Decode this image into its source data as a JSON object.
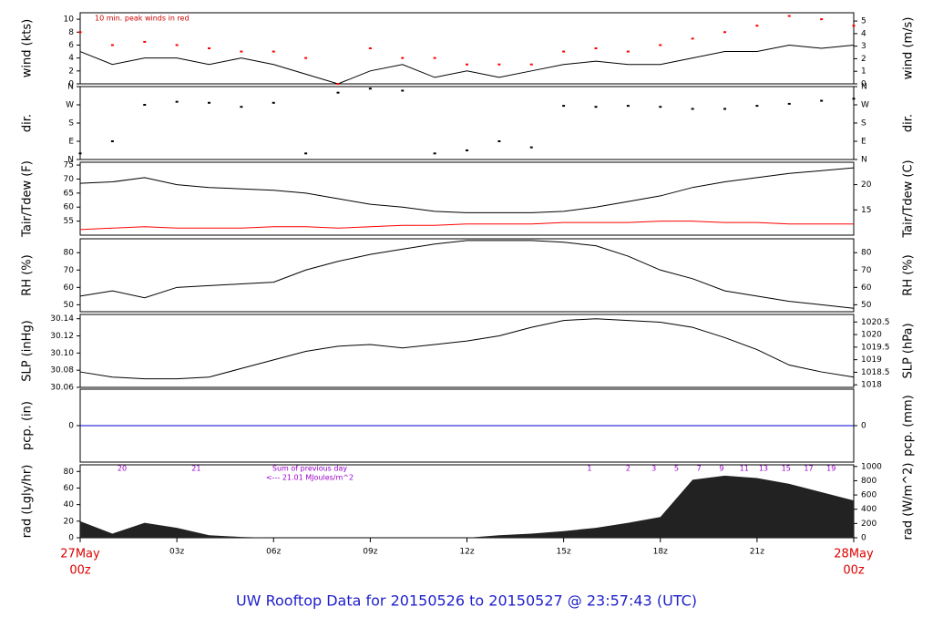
{
  "chart_data": {
    "type": "multi-panel",
    "title": "UW Rooftop Data for 20150526  to  20150527 @ 23:57:43  (UTC)",
    "x": [
      0,
      1,
      2,
      3,
      4,
      5,
      6,
      7,
      8,
      9,
      10,
      11,
      12,
      13,
      14,
      15,
      16,
      17,
      18,
      19,
      20,
      21,
      22,
      23,
      24
    ],
    "xlim": [
      0,
      24
    ],
    "xticks": [
      {
        "value": 0,
        "label": "00z"
      },
      {
        "value": 3,
        "label": "03z"
      },
      {
        "value": 6,
        "label": "06z"
      },
      {
        "value": 9,
        "label": "09z"
      },
      {
        "value": 12,
        "label": "12z"
      },
      {
        "value": 15,
        "label": "15z"
      },
      {
        "value": 18,
        "label": "18z"
      },
      {
        "value": 21,
        "label": "21z"
      },
      {
        "value": 24,
        "label": "00z"
      }
    ],
    "date_labels": [
      "27May",
      "28May"
    ],
    "panels": [
      {
        "type": "line",
        "ylabel": "wind (kts)",
        "y2label": "wind (m/s)",
        "annotation": "10 min. peak winds in red",
        "ylim": [
          0,
          11
        ],
        "yticks": [
          0,
          2,
          4,
          6,
          8,
          10
        ],
        "y2lim": [
          0,
          5.66
        ],
        "y2ticks": [
          0,
          1,
          2,
          3,
          4,
          5
        ],
        "series": [
          {
            "name": "wind",
            "mode": "line",
            "color": "#000000",
            "values": [
              5,
              3,
              4,
              4,
              3,
              4,
              3,
              1.5,
              0,
              2,
              3,
              1,
              2,
              1,
              2,
              3,
              3.5,
              3,
              3,
              4,
              5,
              5,
              6,
              5.5,
              6
            ]
          },
          {
            "name": "peak",
            "mode": "points",
            "color": "#ff0000",
            "values": [
              8,
              6,
              6.5,
              6,
              5.5,
              5,
              5,
              4,
              0,
              5.5,
              4,
              4,
              3,
              3,
              3,
              5,
              5.5,
              5,
              6,
              7,
              8,
              9,
              10.5,
              10,
              9
            ]
          }
        ]
      },
      {
        "type": "scatter",
        "ylabel": "dir.",
        "y2label": "dir.",
        "ylim": [
          0,
          360
        ],
        "yticks": [
          {
            "value": 0,
            "label": "N"
          },
          {
            "value": 90,
            "label": "E"
          },
          {
            "value": 180,
            "label": "S"
          },
          {
            "value": 270,
            "label": "W"
          },
          {
            "value": 360,
            "label": "N"
          }
        ],
        "y2lim": [
          0,
          360
        ],
        "y2ticks": [
          {
            "value": 0,
            "label": "N"
          },
          {
            "value": 90,
            "label": "E"
          },
          {
            "value": 180,
            "label": "S"
          },
          {
            "value": 270,
            "label": "W"
          },
          {
            "value": 360,
            "label": "N"
          }
        ],
        "series": [
          {
            "name": "direction",
            "mode": "points",
            "color": "#000000",
            "values": [
              30,
              90,
              270,
              285,
              280,
              260,
              280,
              30,
              330,
              350,
              340,
              30,
              45,
              90,
              60,
              265,
              260,
              265,
              260,
              250,
              250,
              265,
              275,
              290,
              300
            ]
          }
        ]
      },
      {
        "type": "line",
        "ylabel": "Tair/Tdew (F)",
        "y2label": "Tair/Tdew (C)",
        "ylim": [
          50,
          76
        ],
        "yticks": [
          55,
          60,
          65,
          70,
          75
        ],
        "y2lim": [
          10,
          24.44
        ],
        "y2ticks": [
          15,
          20
        ],
        "series": [
          {
            "name": "Tair",
            "mode": "line",
            "color": "#000000",
            "values": [
              68.5,
              69,
              70.5,
              68,
              67,
              66.5,
              66,
              65,
              63,
              61,
              60,
              58.5,
              58,
              58,
              58,
              58.5,
              60,
              62,
              64,
              67,
              69,
              70.5,
              72,
              73,
              74
            ]
          },
          {
            "name": "Tdew",
            "mode": "line",
            "color": "#ff0000",
            "values": [
              52,
              52.5,
              53,
              52.5,
              52.5,
              52.5,
              53,
              53,
              52.5,
              53,
              53.5,
              53.5,
              54,
              54,
              54,
              54.5,
              54.5,
              54.5,
              55,
              55,
              54.5,
              54.5,
              54,
              54,
              54
            ]
          }
        ]
      },
      {
        "type": "line",
        "ylabel": "RH (%)",
        "y2label": "RH (%)",
        "ylim": [
          46,
          88
        ],
        "yticks": [
          50,
          60,
          70,
          80
        ],
        "y2lim": [
          46,
          88
        ],
        "y2ticks": [
          50,
          60,
          70,
          80
        ],
        "series": [
          {
            "name": "RH",
            "mode": "line",
            "color": "#000000",
            "values": [
              55,
              58,
              54,
              60,
              61,
              62,
              63,
              70,
              75,
              79,
              82,
              85,
              87,
              87,
              87,
              86,
              84,
              78,
              70,
              65,
              58,
              55,
              52,
              50,
              48
            ]
          }
        ]
      },
      {
        "type": "line",
        "ylabel": "SLP (inHg)",
        "y2label": "SLP (hPa)",
        "ylim": [
          30.06,
          30.145
        ],
        "yticks": [
          30.06,
          30.08,
          {
            "value": 30.1,
            "label": "30.10"
          },
          30.12,
          30.14
        ],
        "y2lim": [
          1017.9,
          1020.8
        ],
        "y2ticks": [
          1018,
          1018.5,
          1019,
          1019.5,
          1020,
          1020.5
        ],
        "series": [
          {
            "name": "SLP",
            "mode": "line",
            "color": "#000000",
            "values": [
              30.078,
              30.072,
              30.07,
              30.07,
              30.072,
              30.082,
              30.092,
              30.102,
              30.108,
              30.11,
              30.106,
              30.11,
              30.114,
              30.12,
              30.13,
              30.138,
              30.14,
              30.138,
              30.136,
              30.13,
              30.118,
              30.104,
              30.086,
              30.078,
              30.072
            ]
          }
        ]
      },
      {
        "type": "line",
        "ylabel": "pcp. (in)",
        "y2label": "pcp. (mm)",
        "ylim": [
          -1,
          1
        ],
        "yticks": [
          0
        ],
        "y2lim": [
          -25.4,
          25.4
        ],
        "y2ticks": [
          0
        ],
        "series": [
          {
            "name": "pcp",
            "mode": "line",
            "color": "#0000cc",
            "values": [
              0,
              0,
              0,
              0,
              0,
              0,
              0,
              0,
              0,
              0,
              0,
              0,
              0,
              0,
              0,
              0,
              0,
              0,
              0,
              0,
              0,
              0,
              0,
              0,
              0
            ]
          }
        ]
      },
      {
        "type": "area",
        "ylabel": "rad (Lgly/hr)",
        "y2label": "rad (W/m^2)",
        "ylim": [
          0,
          88
        ],
        "yticks": [
          0,
          20,
          40,
          60,
          80
        ],
        "y2lim": [
          0,
          1023
        ],
        "y2ticks": [
          0,
          200,
          400,
          600,
          800,
          1000
        ],
        "annotations": [
          "Sum of previous day",
          "<--- 21.01 MJoules/m^2"
        ],
        "hour_labels": [
          {
            "x": 1.3,
            "label": "20"
          },
          {
            "x": 3.6,
            "label": "21"
          },
          {
            "x": 15.8,
            "label": "1"
          },
          {
            "x": 17.0,
            "label": "2"
          },
          {
            "x": 17.8,
            "label": "3"
          },
          {
            "x": 18.5,
            "label": "5"
          },
          {
            "x": 19.2,
            "label": "7"
          },
          {
            "x": 19.9,
            "label": "9"
          },
          {
            "x": 20.6,
            "label": "11"
          },
          {
            "x": 21.2,
            "label": "13"
          },
          {
            "x": 21.9,
            "label": "15"
          },
          {
            "x": 22.6,
            "label": "17"
          },
          {
            "x": 23.3,
            "label": "19"
          }
        ],
        "series": [
          {
            "name": "rad",
            "mode": "area",
            "color": "#222222",
            "values": [
              20,
              5,
              18,
              12,
              3,
              1,
              0,
              0,
              0,
              0,
              0,
              0,
              0,
              3,
              5,
              8,
              12,
              18,
              25,
              70,
              75,
              72,
              65,
              55,
              45
            ]
          }
        ]
      }
    ]
  }
}
